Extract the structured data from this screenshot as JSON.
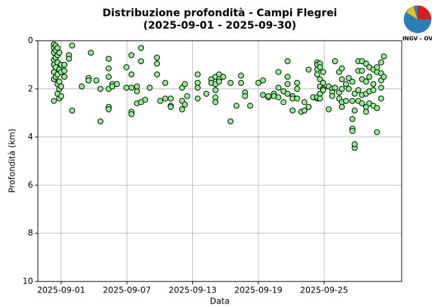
{
  "chart_data": {
    "type": "scatter",
    "title": "Distribuzione profondità - Campi Flegrei",
    "subtitle": "(2025-09-01 - 2025-09-30)",
    "x_label": "Data",
    "y_label": "Profondità (km)",
    "logo_text": "INGV - OV",
    "color": "#90ee90",
    "grid": true,
    "y_inverted": true,
    "xlim": [
      "2025-08-29 21:00",
      "2025-10-02 02:00"
    ],
    "xticks": [
      "2025-09-01",
      "2025-09-07",
      "2025-09-13",
      "2025-09-19",
      "2025-09-25"
    ],
    "ylim": [
      0,
      10
    ],
    "yticks": [
      0,
      2,
      4,
      6,
      8,
      10
    ],
    "x": [
      "2025-08-31 08:00",
      "2025-08-31 08:00",
      "2025-08-31 08:00",
      "2025-08-31 08:00",
      "2025-08-31 08:00",
      "2025-08-31 08:00",
      "2025-08-31 08:00",
      "2025-08-31 08:00",
      "2025-08-31 12:00",
      "2025-08-31 12:00",
      "2025-08-31 12:00",
      "2025-08-31 12:00",
      "2025-08-31 12:00",
      "2025-08-31 16:00",
      "2025-08-31 16:00",
      "2025-08-31 16:00",
      "2025-08-31 16:00",
      "2025-08-31 16:00",
      "2025-08-31 16:00",
      "2025-08-31 20:00",
      "2025-08-31 20:00",
      "2025-08-31 20:00",
      "2025-08-31 20:00",
      "2025-08-31 20:00",
      "2025-09-01 00:00",
      "2025-09-01 00:00",
      "2025-09-01 00:00",
      "2025-09-01 00:00",
      "2025-09-01 07:00",
      "2025-09-01 07:00",
      "2025-09-01 07:00",
      "2025-09-01 17:00",
      "2025-09-01 17:00",
      "2025-09-02 00:00",
      "2025-09-02 00:00",
      "2025-09-02 21:00",
      "2025-09-03 17:00",
      "2025-09-03 12:00",
      "2025-09-03 12:00",
      "2025-09-04 05:00",
      "2025-09-04 14:00",
      "2025-09-04 14:00",
      "2025-09-05 08:00",
      "2025-09-05 08:00",
      "2025-09-05 08:00",
      "2025-09-05 08:00",
      "2025-09-05 08:00",
      "2025-09-05 08:00",
      "2025-09-05 16:00",
      "2025-09-05 16:00",
      "2025-09-06 02:00",
      "2025-09-06 23:00",
      "2025-09-06 23:00",
      "2025-09-07 10:00",
      "2025-09-07 10:00",
      "2025-09-07 10:00",
      "2025-09-07 10:00",
      "2025-09-07 10:00",
      "2025-09-07 22:00",
      "2025-09-07 22:00",
      "2025-09-07 22:00",
      "2025-09-08 07:00",
      "2025-09-08 07:00",
      "2025-09-08 07:00",
      "2025-09-08 16:00",
      "2025-09-09 02:00",
      "2025-09-09 18:00",
      "2025-09-09 18:00",
      "2025-09-09 18:00",
      "2025-09-10 01:00",
      "2025-09-10 12:00",
      "2025-09-10 12:00",
      "2025-09-11 00:00",
      "2025-09-11 00:00",
      "2025-09-11 00:00",
      "2025-09-12 01:00",
      "2025-09-12 01:00",
      "2025-09-12 01:00",
      "2025-09-12 07:00",
      "2025-09-12 07:00",
      "2025-09-12 12:00",
      "2025-09-13 11:00",
      "2025-09-13 11:00",
      "2025-09-13 11:00",
      "2025-09-13 11:00",
      "2025-09-14 06:00",
      "2025-09-14 17:00",
      "2025-09-14 17:00",
      "2025-09-15 02:00",
      "2025-09-15 02:00",
      "2025-09-15 02:00",
      "2025-09-15 02:00",
      "2025-09-15 02:00",
      "2025-09-15 10:00",
      "2025-09-15 10:00",
      "2025-09-15 10:00",
      "2025-09-15 19:00",
      "2025-09-16 11:00",
      "2025-09-16 11:00",
      "2025-09-17 00:00",
      "2025-09-17 10:00",
      "2025-09-17 10:00",
      "2025-09-17 19:00",
      "2025-09-17 19:00",
      "2025-09-18 06:00",
      "2025-09-19 00:00",
      "2025-09-19 10:00",
      "2025-09-19 10:00",
      "2025-09-19 22:00",
      "2025-09-19 22:00",
      "2025-09-20 10:00",
      "2025-09-20 10:00",
      "2025-09-20 20:00",
      "2025-09-20 20:00",
      "2025-09-20 20:00",
      "2025-09-21 07:00",
      "2025-09-21 07:00",
      "2025-09-21 16:00",
      "2025-09-21 16:00",
      "2025-09-21 16:00",
      "2025-09-21 16:00",
      "2025-09-22 03:00",
      "2025-09-22 03:00",
      "2025-09-22 03:00",
      "2025-09-22 13:00",
      "2025-09-22 13:00",
      "2025-09-22 13:00",
      "2025-09-22 22:00",
      "2025-09-23 05:00",
      "2025-09-23 05:00",
      "2025-09-23 14:00",
      "2025-09-23 14:00",
      "2025-09-24 00:00",
      "2025-09-24 09:00",
      "2025-09-24 09:00",
      "2025-09-24 09:00",
      "2025-09-24 09:00",
      "2025-09-24 09:00",
      "2025-09-24 09:00",
      "2025-09-24 15:00",
      "2025-09-24 15:00",
      "2025-09-24 15:00",
      "2025-09-24 15:00",
      "2025-09-24 15:00",
      "2025-09-24 15:00",
      "2025-09-24 22:00",
      "2025-09-24 22:00",
      "2025-09-24 22:00",
      "2025-09-24 22:00",
      "2025-09-25 10:00",
      "2025-09-25 10:00",
      "2025-09-25 18:00",
      "2025-09-25 18:00",
      "2025-09-25 18:00",
      "2025-09-26 00:00",
      "2025-09-26 00:00",
      "2025-09-26 09:00",
      "2025-09-26 09:00",
      "2025-09-26 09:00",
      "2025-09-26 15:00",
      "2025-09-26 15:00",
      "2025-09-26 15:00",
      "2025-09-26 15:00",
      "2025-09-26 15:00",
      "2025-09-27 00:00",
      "2025-09-27 00:00",
      "2025-09-27 06:00",
      "2025-09-27 06:00",
      "2025-09-27 14:00",
      "2025-09-27 14:00",
      "2025-09-27 14:00",
      "2025-09-27 14:00",
      "2025-09-27 14:00",
      "2025-09-27 19:00",
      "2025-09-27 19:00",
      "2025-09-27 19:00",
      "2025-09-27 19:00",
      "2025-09-28 03:00",
      "2025-09-28 03:00",
      "2025-09-28 03:00",
      "2025-09-28 03:00",
      "2025-09-28 11:00",
      "2025-09-28 11:00",
      "2025-09-28 11:00",
      "2025-09-28 11:00",
      "2025-09-28 11:00",
      "2025-09-28 20:00",
      "2025-09-28 20:00",
      "2025-09-28 20:00",
      "2025-09-28 20:00",
      "2025-09-28 20:00",
      "2025-09-29 03:00",
      "2025-09-29 03:00",
      "2025-09-29 03:00",
      "2025-09-29 03:00",
      "2025-09-29 12:00",
      "2025-09-29 12:00",
      "2025-09-29 12:00",
      "2025-09-29 12:00",
      "2025-09-29 20:00",
      "2025-09-29 20:00",
      "2025-09-29 20:00",
      "2025-09-29 20:00",
      "2025-09-30 05:00",
      "2025-09-30 05:00",
      "2025-09-30 05:00",
      "2025-09-30 05:00",
      "2025-09-30 05:00",
      "2025-09-30 11:00",
      "2025-09-30 11:00"
    ],
    "values": [
      0.15,
      0.3,
      0.5,
      0.8,
      1.0,
      1.3,
      1.6,
      2.5,
      0.2,
      0.4,
      0.7,
      1.1,
      1.5,
      0.3,
      0.6,
      0.9,
      1.4,
      1.8,
      2.2,
      0.5,
      1.2,
      1.7,
      2.0,
      2.4,
      1.0,
      1.3,
      1.9,
      2.3,
      1.0,
      1.25,
      1.5,
      0.6,
      0.75,
      0.2,
      2.9,
      1.9,
      0.5,
      1.55,
      1.65,
      1.65,
      3.35,
      2.0,
      0.75,
      1.15,
      1.5,
      2.0,
      2.75,
      2.85,
      1.8,
      1.9,
      1.8,
      1.1,
      1.95,
      0.6,
      1.4,
      2.95,
      3.05,
      1.95,
      2.6,
      2.1,
      1.9,
      0.3,
      0.85,
      2.55,
      2.45,
      1.95,
      0.7,
      0.95,
      1.4,
      2.5,
      1.75,
      2.4,
      2.7,
      2.75,
      2.4,
      2.5,
      2.85,
      1.95,
      1.8,
      2.65,
      2.3,
      1.4,
      1.75,
      1.95,
      2.4,
      2.2,
      1.6,
      1.75,
      1.5,
      1.8,
      2.05,
      2.35,
      2.55,
      1.4,
      1.6,
      1.7,
      1.5,
      3.35,
      1.75,
      2.7,
      1.45,
      1.75,
      2.15,
      2.3,
      2.7,
      1.75,
      1.65,
      2.25,
      2.35,
      2.3,
      2.2,
      2.3,
      1.3,
      1.95,
      2.35,
      2.1,
      2.55,
      0.85,
      1.5,
      1.8,
      2.2,
      2.3,
      2.4,
      2.9,
      1.75,
      2.0,
      2.4,
      2.95,
      2.55,
      2.9,
      1.2,
      2.75,
      2.35,
      0.9,
      1.0,
      1.2,
      1.4,
      2.4,
      2.35,
      0.95,
      1.1,
      1.6,
      1.9,
      2.2,
      2.4,
      1.3,
      1.75,
      2.0,
      2.05,
      2.85,
      1.9,
      2.0,
      2.15,
      2.3,
      0.85,
      1.95,
      1.3,
      2.15,
      2.4,
      1.15,
      1.6,
      2.0,
      2.55,
      2.75,
      1.8,
      2.5,
      1.55,
      2.0,
      1.7,
      2.5,
      3.25,
      3.65,
      3.75,
      4.45,
      4.3,
      2.9,
      2.2,
      0.85,
      1.25,
      2.05,
      2.5,
      0.85,
      1.25,
      1.6,
      2.25,
      2.6,
      0.95,
      1.7,
      2.2,
      2.75,
      2.95,
      1.1,
      1.5,
      2.1,
      2.6,
      1.2,
      1.8,
      2.05,
      2.7,
      3.8,
      2.8,
      1.3,
      1.1,
      0.9,
      1.35,
      1.65,
      1.95,
      2.4,
      0.65,
      1.5
    ]
  }
}
